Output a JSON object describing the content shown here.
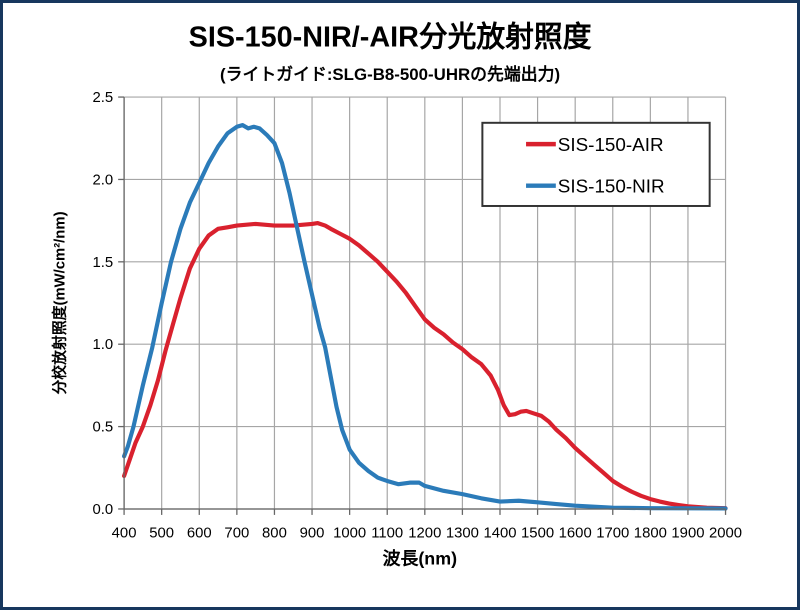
{
  "window": {
    "border_color": "#17375e",
    "background": "#ffffff"
  },
  "title": "SIS-150-NIR/-AIR分光放射照度",
  "subtitle": "(ライトガイド:SLG-B8-500-UHRの先端出力)",
  "chart_data": {
    "type": "line",
    "title": "SIS-150-NIR/-AIR分光放射照度",
    "subtitle": "(ライトガイド:SLG-B8-500-UHRの先端出力)",
    "xlabel": "波長(nm)",
    "ylabel": "分校放射照度(mW/cm²/nm)",
    "xlim": [
      400,
      2000
    ],
    "ylim": [
      0.0,
      2.5
    ],
    "x_ticks": [
      400,
      500,
      600,
      700,
      800,
      900,
      1000,
      1100,
      1200,
      1300,
      1400,
      1500,
      1600,
      1700,
      1800,
      1900,
      2000
    ],
    "y_ticks": [
      0.0,
      0.5,
      1.0,
      1.5,
      2.0,
      2.5
    ],
    "grid": true,
    "grid_color": "#a6a6a6",
    "axis_color": "#666666",
    "legend_position": "upper right",
    "series": [
      {
        "name": "SIS-150-AIR",
        "color": "#d9212e",
        "x": [
          400,
          415,
          430,
          450,
          470,
          490,
          510,
          530,
          550,
          575,
          600,
          625,
          650,
          675,
          700,
          750,
          800,
          850,
          900,
          915,
          935,
          950,
          975,
          1000,
          1025,
          1050,
          1075,
          1100,
          1125,
          1150,
          1175,
          1200,
          1225,
          1250,
          1275,
          1300,
          1325,
          1350,
          1375,
          1395,
          1410,
          1425,
          1440,
          1455,
          1470,
          1490,
          1510,
          1530,
          1550,
          1575,
          1600,
          1625,
          1650,
          1675,
          1700,
          1725,
          1750,
          1775,
          1800,
          1825,
          1850,
          1875,
          1900,
          1950,
          2000
        ],
        "y": [
          0.2,
          0.3,
          0.4,
          0.5,
          0.63,
          0.78,
          0.96,
          1.12,
          1.28,
          1.46,
          1.58,
          1.66,
          1.7,
          1.71,
          1.72,
          1.73,
          1.72,
          1.72,
          1.73,
          1.735,
          1.72,
          1.7,
          1.67,
          1.64,
          1.6,
          1.55,
          1.5,
          1.44,
          1.38,
          1.31,
          1.23,
          1.15,
          1.1,
          1.06,
          1.01,
          0.97,
          0.92,
          0.88,
          0.81,
          0.72,
          0.63,
          0.57,
          0.575,
          0.59,
          0.595,
          0.58,
          0.565,
          0.53,
          0.48,
          0.43,
          0.37,
          0.32,
          0.27,
          0.22,
          0.17,
          0.135,
          0.105,
          0.08,
          0.06,
          0.045,
          0.033,
          0.024,
          0.016,
          0.008,
          0.005
        ]
      },
      {
        "name": "SIS-150-NIR",
        "color": "#2b7bb9",
        "x": [
          400,
          410,
          425,
          450,
          475,
          500,
          525,
          550,
          575,
          600,
          625,
          650,
          675,
          700,
          715,
          730,
          745,
          760,
          780,
          800,
          820,
          840,
          860,
          880,
          900,
          920,
          935,
          950,
          965,
          980,
          1000,
          1025,
          1050,
          1075,
          1100,
          1130,
          1160,
          1185,
          1200,
          1250,
          1300,
          1350,
          1400,
          1450,
          1500,
          1550,
          1600,
          1700,
          1800,
          1900,
          2000
        ],
        "y": [
          0.32,
          0.38,
          0.5,
          0.75,
          0.98,
          1.25,
          1.5,
          1.7,
          1.86,
          1.98,
          2.1,
          2.2,
          2.28,
          2.32,
          2.33,
          2.31,
          2.32,
          2.31,
          2.27,
          2.22,
          2.1,
          1.92,
          1.71,
          1.5,
          1.3,
          1.1,
          0.98,
          0.8,
          0.62,
          0.48,
          0.36,
          0.28,
          0.23,
          0.19,
          0.17,
          0.15,
          0.16,
          0.16,
          0.14,
          0.11,
          0.09,
          0.065,
          0.045,
          0.05,
          0.04,
          0.03,
          0.02,
          0.008,
          0.005,
          0.004,
          0.003
        ]
      }
    ]
  },
  "legend": {
    "entries": [
      {
        "label": "SIS-150-AIR"
      },
      {
        "label": "SIS-150-NIR"
      }
    ]
  }
}
